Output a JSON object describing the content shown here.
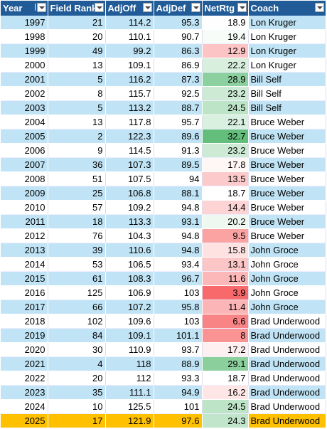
{
  "table": {
    "headers": [
      "Year",
      "Field Rank",
      "AdjOff",
      "AdjDef",
      "NetRtg",
      "Coach"
    ],
    "rows": [
      [
        1997,
        21,
        114.2,
        95.3,
        18.9,
        "Lon Kruger"
      ],
      [
        1998,
        20,
        110.1,
        90.7,
        19.4,
        "Lon Kruger"
      ],
      [
        1999,
        49,
        99.2,
        86.3,
        12.9,
        "Lon Kruger"
      ],
      [
        2000,
        13,
        109.1,
        86.9,
        22.2,
        "Lon Kruger"
      ],
      [
        2001,
        5,
        116.2,
        87.3,
        28.9,
        "Bill Self"
      ],
      [
        2002,
        8,
        115.7,
        92.5,
        23.2,
        "Bill Self"
      ],
      [
        2003,
        5,
        113.2,
        88.7,
        24.5,
        "Bill Self"
      ],
      [
        2004,
        13,
        117.8,
        95.7,
        22.1,
        "Bruce Weber"
      ],
      [
        2005,
        2,
        122.3,
        89.6,
        32.7,
        "Bruce Weber"
      ],
      [
        2006,
        9,
        114.5,
        91.3,
        23.2,
        "Bruce Weber"
      ],
      [
        2007,
        36,
        107.3,
        89.5,
        17.8,
        "Bruce Weber"
      ],
      [
        2008,
        51,
        107.5,
        94,
        13.5,
        "Bruce Weber"
      ],
      [
        2009,
        25,
        106.8,
        88.1,
        18.7,
        "Bruce Weber"
      ],
      [
        2010,
        57,
        109.2,
        94.8,
        14.4,
        "Bruce Weber"
      ],
      [
        2011,
        18,
        113.3,
        93.1,
        20.2,
        "Bruce Weber"
      ],
      [
        2012,
        76,
        104.3,
        94.8,
        9.5,
        "Bruce Weber"
      ],
      [
        2013,
        39,
        110.6,
        94.8,
        15.8,
        "John Groce"
      ],
      [
        2014,
        53,
        106.5,
        93.4,
        13.1,
        "John Groce"
      ],
      [
        2015,
        61,
        108.3,
        96.7,
        11.6,
        "John Groce"
      ],
      [
        2016,
        125,
        106.9,
        103,
        3.9,
        "John Groce"
      ],
      [
        2017,
        66,
        107.2,
        95.8,
        11.4,
        "John Groce"
      ],
      [
        2018,
        102,
        109.6,
        103,
        6.6,
        "Brad Underwood"
      ],
      [
        2019,
        84,
        109.1,
        101.1,
        8,
        "Brad Underwood"
      ],
      [
        2020,
        30,
        110.9,
        93.7,
        17.2,
        "Brad Underwood"
      ],
      [
        2021,
        4,
        118,
        88.9,
        29.1,
        "Brad Underwood"
      ],
      [
        2022,
        20,
        112,
        93.3,
        18.7,
        "Brad Underwood"
      ],
      [
        2023,
        35,
        111.1,
        94.9,
        16.2,
        "Brad Underwood"
      ],
      [
        2024,
        10,
        125.5,
        101,
        24.5,
        "Brad Underwood"
      ],
      [
        2025,
        17,
        121.9,
        97.6,
        24.3,
        "Brad Underwood"
      ]
    ],
    "color_scale": {
      "column": 4,
      "low": "#F8696B",
      "mid": "#FFFFFF",
      "high": "#63BE7B"
    }
  }
}
